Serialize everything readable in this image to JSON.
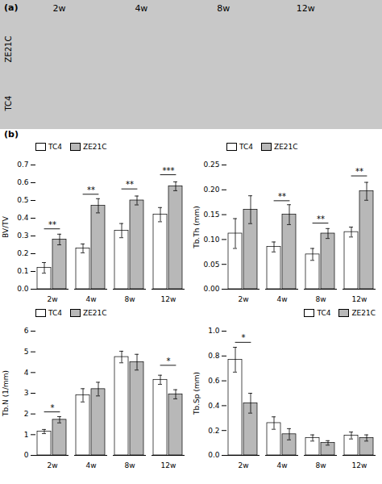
{
  "annotations": [
    "(a)",
    "2w",
    "4w",
    "8w",
    "12w",
    "ZE21C",
    "TC4",
    "(b)"
  ],
  "chart_data": [
    {
      "type": "bar",
      "ylabel": "BV/TV",
      "categories": [
        "2w",
        "4w",
        "8w",
        "12w"
      ],
      "series": [
        {
          "name": "TC4",
          "color": "#ffffff",
          "values": [
            0.12,
            0.23,
            0.33,
            0.42
          ],
          "errors": [
            0.03,
            0.025,
            0.04,
            0.04
          ]
        },
        {
          "name": "ZE21C",
          "color": "#b8b8b8",
          "values": [
            0.28,
            0.47,
            0.5,
            0.58
          ],
          "errors": [
            0.03,
            0.04,
            0.025,
            0.025
          ]
        }
      ],
      "ylim": [
        0.0,
        0.7
      ],
      "yticks": [
        {
          "value": 0.0,
          "label": "0.0"
        },
        0.1,
        0.2,
        0.3,
        0.4,
        0.5,
        0.6,
        0.7
      ],
      "annotations": [
        {
          "text": "**",
          "x": "2w",
          "y": 0.34
        },
        {
          "text": "**",
          "x": "4w",
          "y": 0.535
        },
        {
          "text": "**",
          "x": "8w",
          "y": 0.565
        },
        {
          "text": "***",
          "x": "12w",
          "y": 0.645
        }
      ],
      "legend": "upper left"
    },
    {
      "type": "bar",
      "ylabel": "Tb.Th (mm)",
      "categories": [
        "2w",
        "4w",
        "8w",
        "12w"
      ],
      "series": [
        {
          "name": "TC4",
          "color": "#ffffff",
          "values": [
            0.112,
            0.085,
            0.07,
            0.115
          ],
          "errors": [
            0.03,
            0.01,
            0.012,
            0.01
          ]
        },
        {
          "name": "ZE21C",
          "color": "#b8b8b8",
          "values": [
            0.16,
            0.15,
            0.112,
            0.197
          ],
          "errors": [
            0.028,
            0.02,
            0.01,
            0.018
          ]
        }
      ],
      "ylim": [
        0.0,
        0.25
      ],
      "yticks": [
        {
          "value": 0.0,
          "label": "0.00"
        },
        0.05,
        {
          "value": 0.1,
          "label": "0.10"
        },
        0.15,
        {
          "value": 0.2,
          "label": "0.20"
        },
        0.25
      ],
      "annotations": [
        {
          "text": "**",
          "x": "4w",
          "y": 0.178
        },
        {
          "text": "**",
          "x": "8w",
          "y": 0.133
        },
        {
          "text": "**",
          "x": "12w",
          "y": 0.228
        }
      ],
      "legend": "upper left"
    },
    {
      "type": "bar",
      "ylabel": "Tb.N (1/mm)",
      "categories": [
        "2w",
        "4w",
        "8w",
        "12w"
      ],
      "series": [
        {
          "name": "TC4",
          "color": "#ffffff",
          "values": [
            1.15,
            2.9,
            4.75,
            3.65
          ],
          "errors": [
            0.1,
            0.32,
            0.28,
            0.22
          ]
        },
        {
          "name": "ZE21C",
          "color": "#b8b8b8",
          "values": [
            1.72,
            3.2,
            4.5,
            2.95
          ],
          "errors": [
            0.15,
            0.33,
            0.38,
            0.22
          ]
        }
      ],
      "ylim": [
        0,
        6
      ],
      "yticks": [
        0,
        1,
        2,
        3,
        4,
        5,
        6
      ],
      "annotations": [
        {
          "text": "*",
          "x": "2w",
          "y": 2.1
        },
        {
          "text": "*",
          "x": "12w",
          "y": 4.35
        }
      ],
      "legend": "upper left"
    },
    {
      "type": "bar",
      "ylabel": "Tb.Sp (mm)",
      "categories": [
        "2w",
        "4w",
        "8w",
        "12w"
      ],
      "series": [
        {
          "name": "TC4",
          "color": "#ffffff",
          "values": [
            0.77,
            0.26,
            0.14,
            0.16
          ],
          "errors": [
            0.1,
            0.05,
            0.025,
            0.028
          ]
        },
        {
          "name": "ZE21C",
          "color": "#b8b8b8",
          "values": [
            0.42,
            0.17,
            0.1,
            0.14
          ],
          "errors": [
            0.08,
            0.045,
            0.018,
            0.025
          ]
        }
      ],
      "ylim": [
        0.0,
        1.0
      ],
      "yticks": [
        {
          "value": 0.0,
          "label": "0.0"
        },
        0.2,
        0.4,
        0.6,
        0.8,
        {
          "value": 1.0,
          "label": "1.0"
        }
      ],
      "annotations": [
        {
          "text": "*",
          "x": "2w",
          "y": 0.91
        }
      ],
      "legend": "upper right"
    }
  ]
}
